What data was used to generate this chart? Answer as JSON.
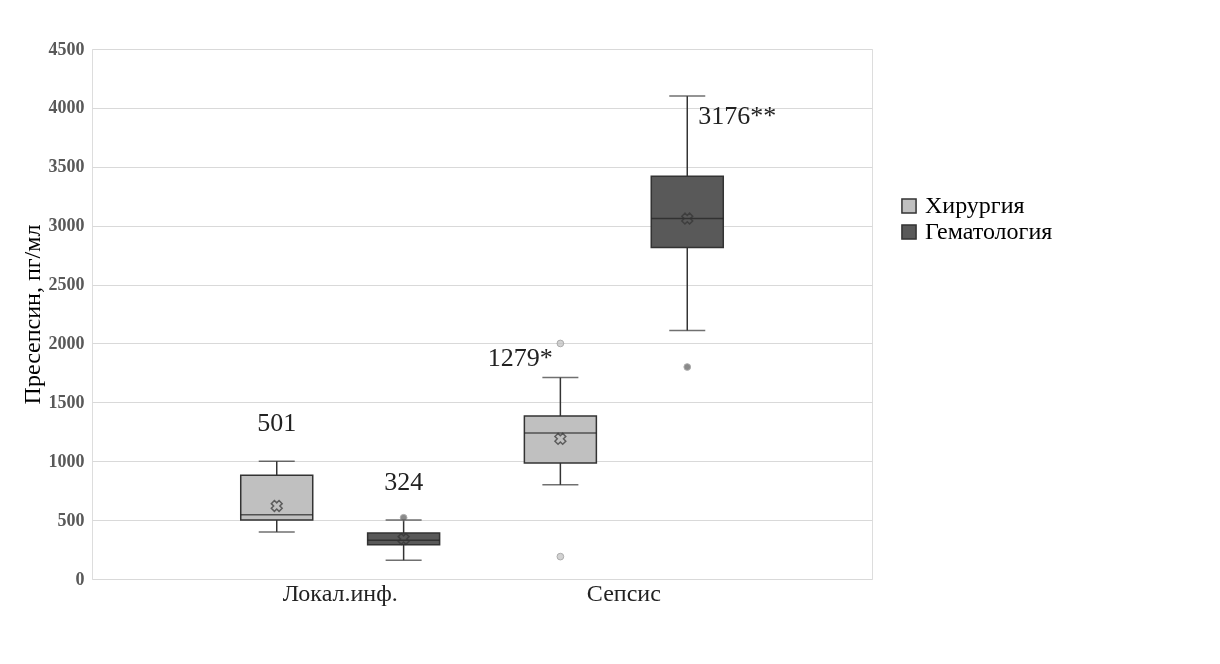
{
  "chart_data": {
    "type": "box",
    "ylabel": "Пресепсин, пг/мл",
    "categories": [
      "Локал.инф.",
      "Сепсис"
    ],
    "series": [
      {
        "name": "Хирургия",
        "color": "#c0c0c0",
        "boxes": [
          {
            "low": 400,
            "q1": 500,
            "median": 545,
            "q3": 880,
            "high": 1000,
            "mean": 620
          },
          {
            "low": 800,
            "q1": 985,
            "median": 1240,
            "q3": 1385,
            "high": 1710,
            "mean": 1190,
            "outliers": [
              2000,
              190
            ]
          }
        ]
      },
      {
        "name": "Гематология",
        "color": "#595959",
        "boxes": [
          {
            "low": 160,
            "q1": 290,
            "median": 330,
            "q3": 390,
            "high": 500,
            "mean": 340,
            "outliers": [
              520
            ]
          },
          {
            "low": 2110,
            "q1": 2815,
            "median": 3060,
            "q3": 3420,
            "high": 4100,
            "mean": 3060,
            "outliers": [
              1800
            ]
          }
        ]
      }
    ],
    "ylim": [
      0,
      4500
    ],
    "yticks": [
      0,
      500,
      1000,
      1500,
      2000,
      2500,
      3000,
      3500,
      4000,
      4500
    ],
    "grid": "y",
    "legend": "right",
    "marker": "cross",
    "annotations": [
      "501",
      "324",
      "1279*",
      "3176**"
    ]
  }
}
